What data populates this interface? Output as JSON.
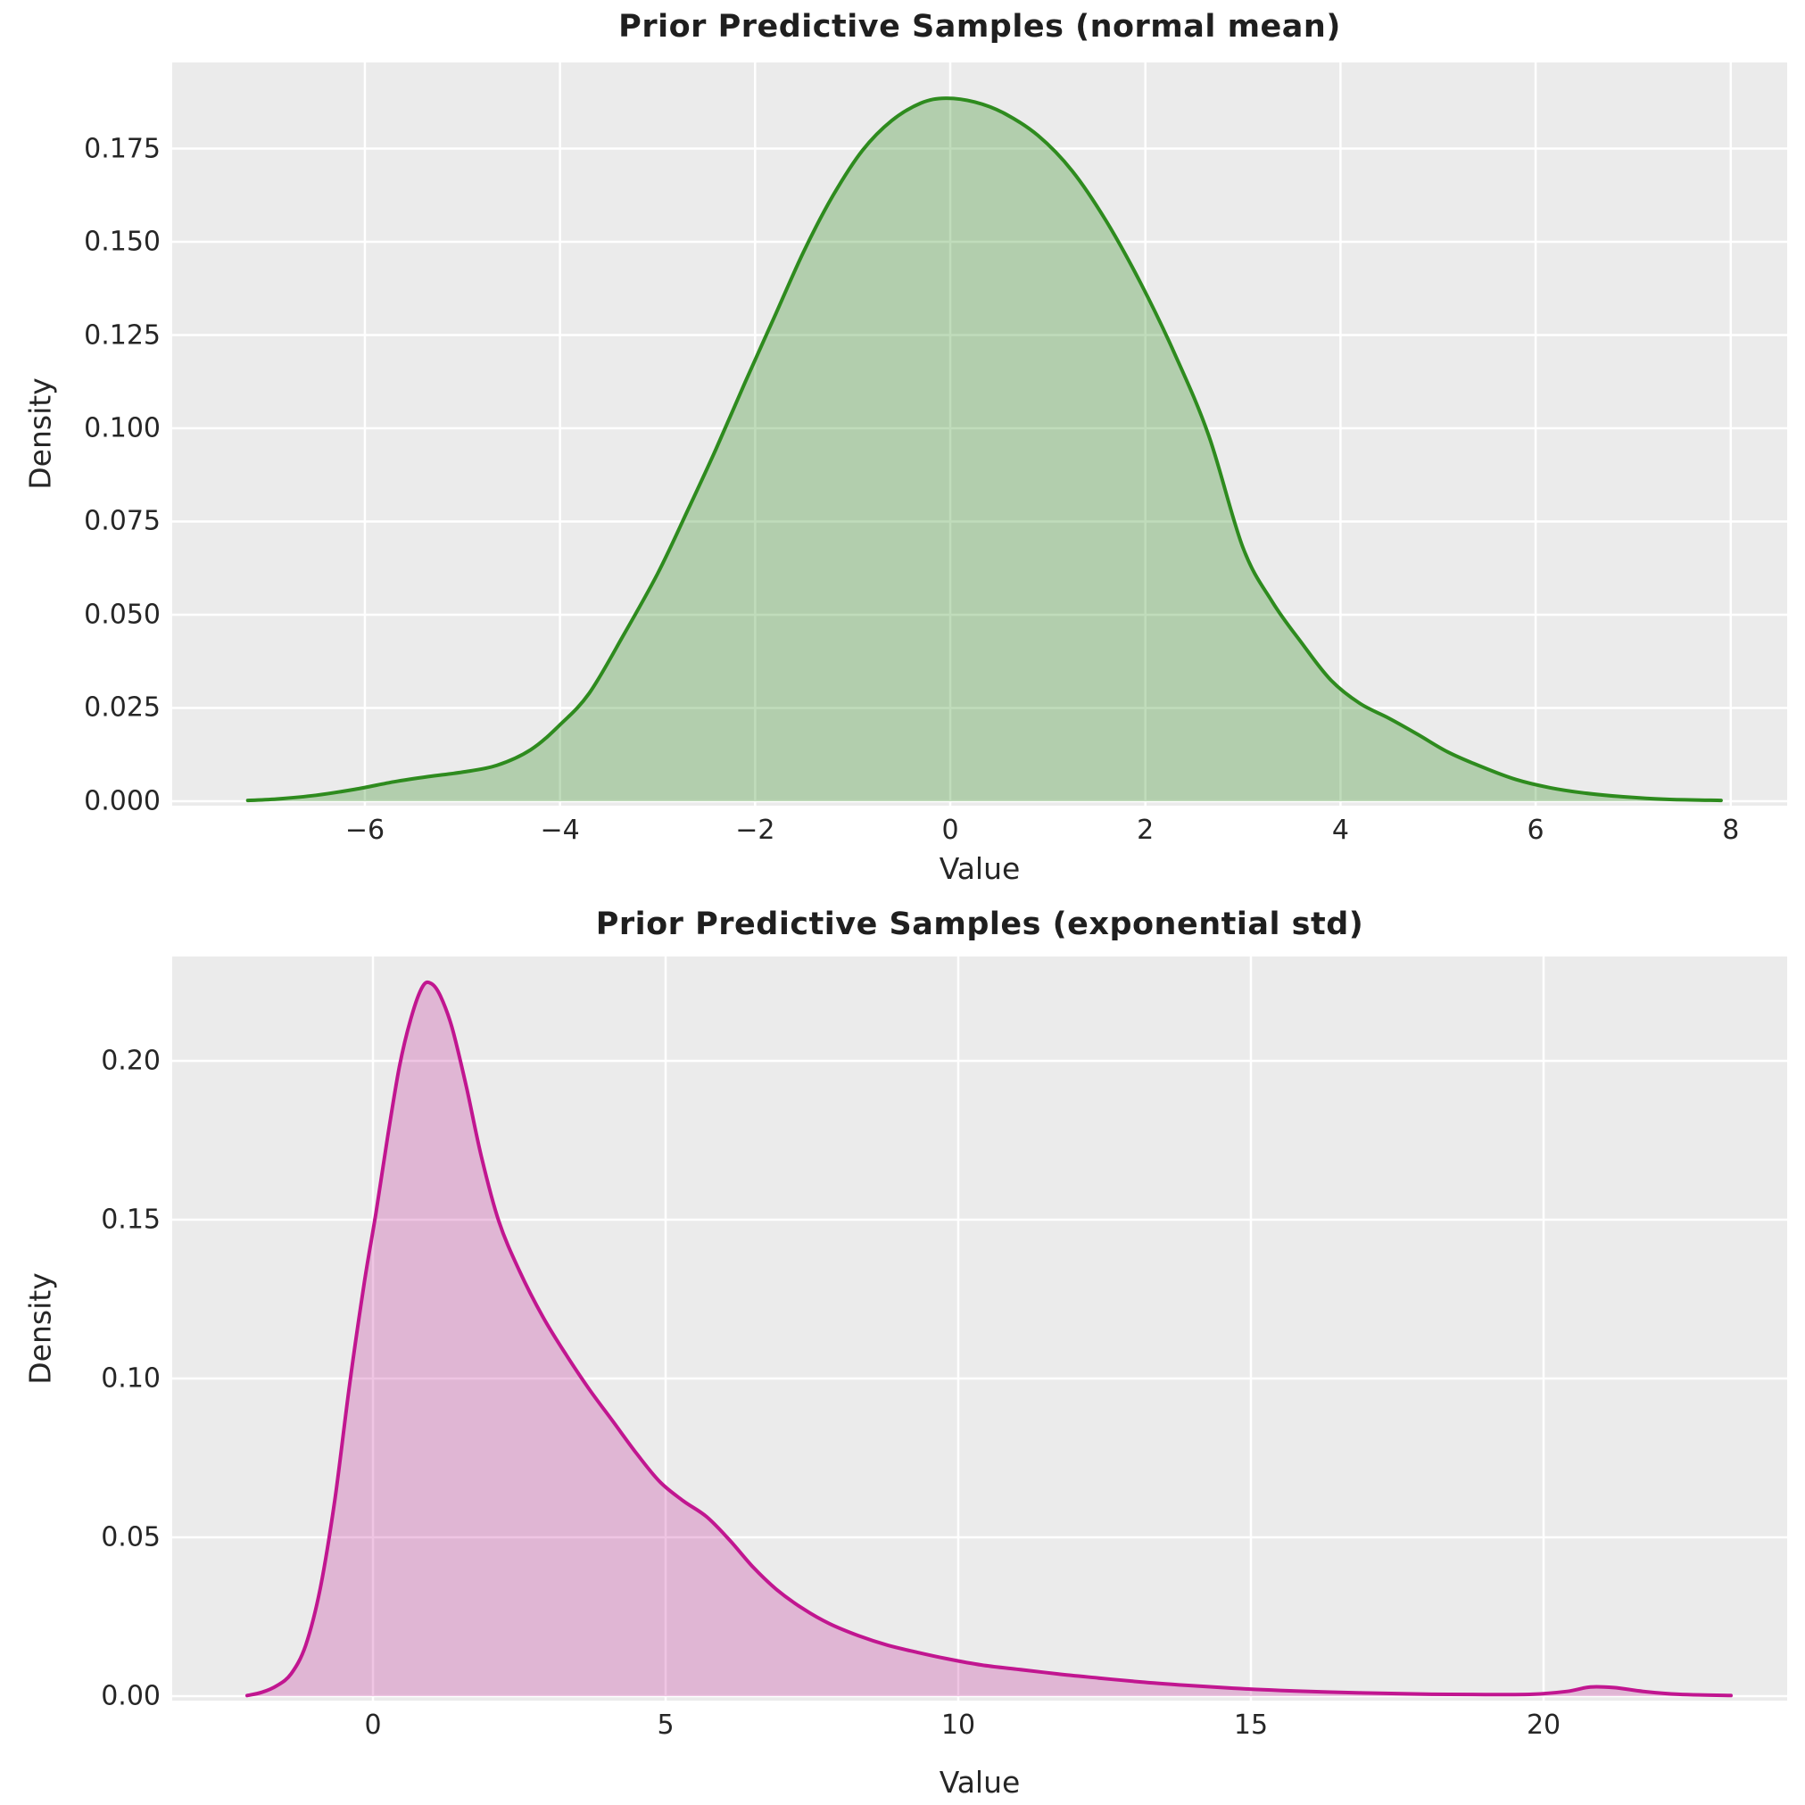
{
  "figure": {
    "background": "#ffffff",
    "plot_background": "#EBEBEB",
    "grid_color": "#ffffff",
    "text_color": "#262626",
    "title_color": "#1f1f1f"
  },
  "chart_data": [
    {
      "type": "area",
      "name": "kde-normal-mean",
      "title": "Prior Predictive Samples (normal mean)",
      "xlabel": "Value",
      "ylabel": "Density",
      "legend": "none",
      "grid": true,
      "line_color": "#2E8B1E",
      "fill_color": "rgba(46,139,30,0.30)",
      "x_range": [
        -7.975,
        8.578
      ],
      "y_range": [
        -0.0012,
        0.19809
      ],
      "x_ticks": [
        -6,
        -4,
        -2,
        0,
        2,
        4,
        6,
        8
      ],
      "x_tick_labels": [
        "−6",
        "−4",
        "−2",
        "0",
        "2",
        "4",
        "6",
        "8"
      ],
      "y_ticks": [
        0.0,
        0.025,
        0.05,
        0.075,
        0.1,
        0.125,
        0.15,
        0.175
      ],
      "y_tick_labels": [
        "0.000",
        "0.025",
        "0.050",
        "0.075",
        "0.100",
        "0.125",
        "0.150",
        "0.175"
      ],
      "peak": {
        "x": -0.05,
        "density": 0.1885
      },
      "points": [
        [
          -7.2,
          0.0002
        ],
        [
          -6.9,
          0.0006
        ],
        [
          -6.5,
          0.0016
        ],
        [
          -6.1,
          0.0032
        ],
        [
          -5.7,
          0.0052
        ],
        [
          -5.35,
          0.0066
        ],
        [
          -5.0,
          0.0078
        ],
        [
          -4.65,
          0.0096
        ],
        [
          -4.3,
          0.0138
        ],
        [
          -4.0,
          0.0205
        ],
        [
          -3.7,
          0.029
        ],
        [
          -3.35,
          0.0445
        ],
        [
          -3.0,
          0.061
        ],
        [
          -2.7,
          0.0775
        ],
        [
          -2.4,
          0.0945
        ],
        [
          -2.1,
          0.1125
        ],
        [
          -1.8,
          0.13
        ],
        [
          -1.5,
          0.1475
        ],
        [
          -1.2,
          0.1625
        ],
        [
          -0.9,
          0.1745
        ],
        [
          -0.6,
          0.1825
        ],
        [
          -0.3,
          0.1872
        ],
        [
          -0.05,
          0.1885
        ],
        [
          0.25,
          0.1875
        ],
        [
          0.55,
          0.1845
        ],
        [
          0.9,
          0.1785
        ],
        [
          1.25,
          0.169
        ],
        [
          1.6,
          0.1555
        ],
        [
          1.95,
          0.139
        ],
        [
          2.3,
          0.12
        ],
        [
          2.65,
          0.098
        ],
        [
          3.0,
          0.068
        ],
        [
          3.3,
          0.0535
        ],
        [
          3.6,
          0.0425
        ],
        [
          3.9,
          0.0325
        ],
        [
          4.2,
          0.0262
        ],
        [
          4.5,
          0.0222
        ],
        [
          4.8,
          0.0178
        ],
        [
          5.1,
          0.0132
        ],
        [
          5.45,
          0.0092
        ],
        [
          5.8,
          0.0058
        ],
        [
          6.15,
          0.0036
        ],
        [
          6.5,
          0.0022
        ],
        [
          6.9,
          0.0012
        ],
        [
          7.35,
          0.0005
        ],
        [
          7.9,
          0.0002
        ]
      ]
    },
    {
      "type": "area",
      "name": "kde-exponential-std",
      "title": "Prior Predictive Samples (exponential std)",
      "xlabel": "Value",
      "ylabel": "Density",
      "legend": "none",
      "grid": true,
      "line_color": "#C11690",
      "fill_color": "rgba(193,22,144,0.25)",
      "x_range": [
        -3.43,
        24.161
      ],
      "y_range": [
        -0.0014,
        0.23287
      ],
      "x_ticks": [
        0,
        5,
        10,
        15,
        20
      ],
      "x_tick_labels": [
        "0",
        "5",
        "10",
        "15",
        "20"
      ],
      "y_ticks": [
        0.0,
        0.05,
        0.1,
        0.15,
        0.2
      ],
      "y_tick_labels": [
        "0.00",
        "0.05",
        "0.10",
        "0.15",
        "0.20"
      ],
      "peak": {
        "x": 0.95,
        "density": 0.2243
      },
      "points": [
        [
          -2.15,
          0.0002
        ],
        [
          -1.9,
          0.0012
        ],
        [
          -1.65,
          0.0032
        ],
        [
          -1.4,
          0.007
        ],
        [
          -1.15,
          0.016
        ],
        [
          -0.9,
          0.034
        ],
        [
          -0.65,
          0.062
        ],
        [
          -0.4,
          0.098
        ],
        [
          -0.15,
          0.13
        ],
        [
          0.05,
          0.152
        ],
        [
          0.25,
          0.176
        ],
        [
          0.45,
          0.198
        ],
        [
          0.65,
          0.2135
        ],
        [
          0.85,
          0.2235
        ],
        [
          1.0,
          0.2243
        ],
        [
          1.15,
          0.2205
        ],
        [
          1.35,
          0.2105
        ],
        [
          1.6,
          0.1915
        ],
        [
          1.85,
          0.17
        ],
        [
          2.15,
          0.1495
        ],
        [
          2.5,
          0.134
        ],
        [
          2.9,
          0.1195
        ],
        [
          3.3,
          0.1075
        ],
        [
          3.7,
          0.0965
        ],
        [
          4.1,
          0.0865
        ],
        [
          4.5,
          0.0765
        ],
        [
          4.9,
          0.0675
        ],
        [
          5.3,
          0.0615
        ],
        [
          5.7,
          0.0565
        ],
        [
          6.1,
          0.049
        ],
        [
          6.5,
          0.0405
        ],
        [
          6.9,
          0.0335
        ],
        [
          7.35,
          0.0275
        ],
        [
          7.8,
          0.0228
        ],
        [
          8.3,
          0.019
        ],
        [
          8.8,
          0.016
        ],
        [
          9.3,
          0.0138
        ],
        [
          9.8,
          0.0118
        ],
        [
          10.4,
          0.0098
        ],
        [
          11.0,
          0.0085
        ],
        [
          11.7,
          0.007
        ],
        [
          12.4,
          0.0057
        ],
        [
          13.1,
          0.0045
        ],
        [
          13.9,
          0.0034
        ],
        [
          14.7,
          0.0025
        ],
        [
          15.5,
          0.0018
        ],
        [
          16.3,
          0.0013
        ],
        [
          17.2,
          0.0009
        ],
        [
          18.1,
          0.0006
        ],
        [
          19.0,
          0.0005
        ],
        [
          19.8,
          0.0006
        ],
        [
          20.4,
          0.0015
        ],
        [
          20.8,
          0.0029
        ],
        [
          21.2,
          0.0027
        ],
        [
          21.7,
          0.0015
        ],
        [
          22.3,
          0.0006
        ],
        [
          23.2,
          0.0002
        ]
      ]
    }
  ]
}
